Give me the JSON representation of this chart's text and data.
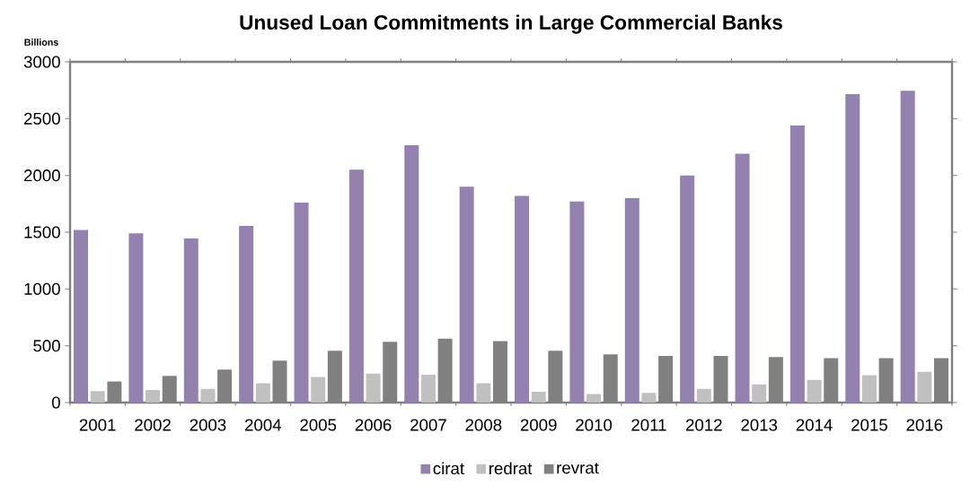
{
  "chart_data": {
    "type": "bar",
    "title": "Unused  Loan Commitments in Large Commercial Banks",
    "ylabel": "Billions",
    "categories": [
      "2001",
      "2002",
      "2003",
      "2004",
      "2005",
      "2006",
      "2007",
      "2008",
      "2009",
      "2010",
      "2011",
      "2012",
      "2013",
      "2014",
      "2015",
      "2016"
    ],
    "series": [
      {
        "name": "cirat",
        "color": "#9381b0",
        "values": [
          1520,
          1490,
          1445,
          1555,
          1760,
          2050,
          2265,
          1900,
          1820,
          1770,
          1800,
          2000,
          2190,
          2440,
          2715,
          2745
        ]
      },
      {
        "name": "redrat",
        "color": "#c0c0c0",
        "values": [
          100,
          110,
          120,
          170,
          225,
          255,
          245,
          170,
          95,
          75,
          85,
          120,
          160,
          200,
          240,
          270
        ]
      },
      {
        "name": "revrat",
        "color": "#808080",
        "values": [
          185,
          235,
          290,
          370,
          455,
          535,
          565,
          540,
          455,
          425,
          410,
          410,
          400,
          390,
          390,
          390
        ]
      }
    ],
    "ylim": [
      0,
      3000
    ],
    "yticks": [
      0,
      500,
      1000,
      1500,
      2000,
      2500,
      3000
    ],
    "grid": false,
    "legend": "bottom"
  }
}
